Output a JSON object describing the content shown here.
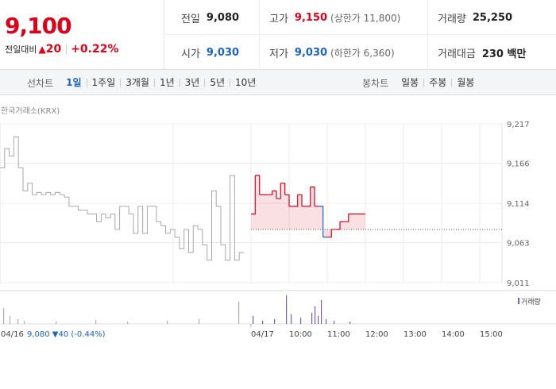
{
  "quote": {
    "price": "9,100",
    "change_label": "전일대비",
    "change_arrow": "▲",
    "change_value": "20",
    "change_pct": "+0.22%",
    "up_color": "#e1001a",
    "down_color": "#1a63c7"
  },
  "stats": {
    "prev_close": {
      "label": "전일",
      "value": "9,080"
    },
    "high": {
      "label": "고가",
      "value": "9,150",
      "sub": "(상한가 11,800)"
    },
    "volume": {
      "label": "거래량",
      "value": "25,250"
    },
    "open": {
      "label": "시가",
      "value": "9,030"
    },
    "low": {
      "label": "저가",
      "value": "9,030",
      "sub": "(하한가 6,360)"
    },
    "trade_value": {
      "label": "거래대금",
      "value": "230 백만"
    }
  },
  "tabs": {
    "line_title": "선차트",
    "line_tabs": [
      "1일",
      "1주일",
      "3개월",
      "1년",
      "3년",
      "5년",
      "10년"
    ],
    "line_active": "1일",
    "candle_title": "봉차트",
    "candle_tabs": [
      "일봉",
      "주봉",
      "월봉"
    ]
  },
  "source": "한국거래소(KRX)",
  "chart_data": {
    "type": "line",
    "y_ticks": [
      "9,217",
      "9,166",
      "9,114",
      "9,063",
      "9,011"
    ],
    "ylim": [
      9011,
      9217
    ],
    "baseline": 9080,
    "x_ticks": [
      "04/16",
      "04/17",
      "10:00",
      "11:00",
      "12:00",
      "13:00",
      "14:00",
      "15:00"
    ],
    "prev_day_label": "04/16",
    "prev_day_close": "9,080",
    "prev_day_change": "▼40",
    "prev_day_pct": "(-0.44%)",
    "volume_label": "거래량",
    "series": [
      {
        "values": [
          9160,
          9185,
          9175,
          9200,
          9160,
          9130,
          9140,
          9125,
          9128,
          9125,
          9128,
          9125,
          9128,
          9125,
          9122,
          9110,
          9110,
          9105,
          9105,
          9100,
          9100,
          9090,
          9100,
          9095,
          9100,
          9080,
          9110,
          9110,
          9100,
          9075,
          9110,
          9075,
          9110,
          9110,
          9090,
          9085,
          9075,
          9080,
          9070,
          9055,
          9080,
          9050,
          9085,
          9080,
          9060,
          9040,
          9130,
          9110,
          9060,
          9040,
          9150,
          9040,
          9050,
          9050
        ]
      },
      {
        "values": [
          9100,
          9150,
          9125,
          9125,
          9125,
          9130,
          9120,
          9140,
          9125,
          9110,
          9110,
          9125,
          9110,
          9110,
          9135,
          9110,
          9110,
          9070,
          9070,
          9080,
          9080,
          9090,
          9090,
          9100,
          9100,
          9100,
          9100,
          9100
        ]
      }
    ]
  }
}
